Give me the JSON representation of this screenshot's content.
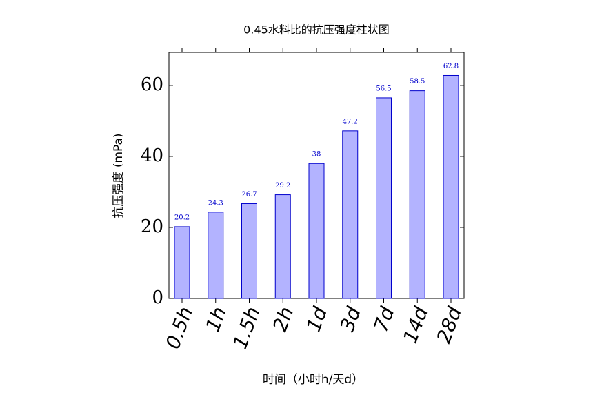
{
  "chart_data": {
    "type": "bar",
    "title": "0.45水料比的抗压强度柱状图",
    "x_label": "时间（小时h/天d）",
    "y_label": "抗压强度 (mPa)",
    "categories": [
      "0.5h",
      "1h",
      "1.5h",
      "2h",
      "1d",
      "3d",
      "7d",
      "14d",
      "28d"
    ],
    "values": [
      20.2,
      24.3,
      26.7,
      29.2,
      38,
      47.2,
      56.5,
      58.5,
      62.8
    ],
    "color": "#b3b3ff",
    "edge_color": "#0000cc",
    "ylim": [
      0,
      69.3
    ],
    "yticks": [
      0,
      20,
      40,
      60
    ]
  }
}
